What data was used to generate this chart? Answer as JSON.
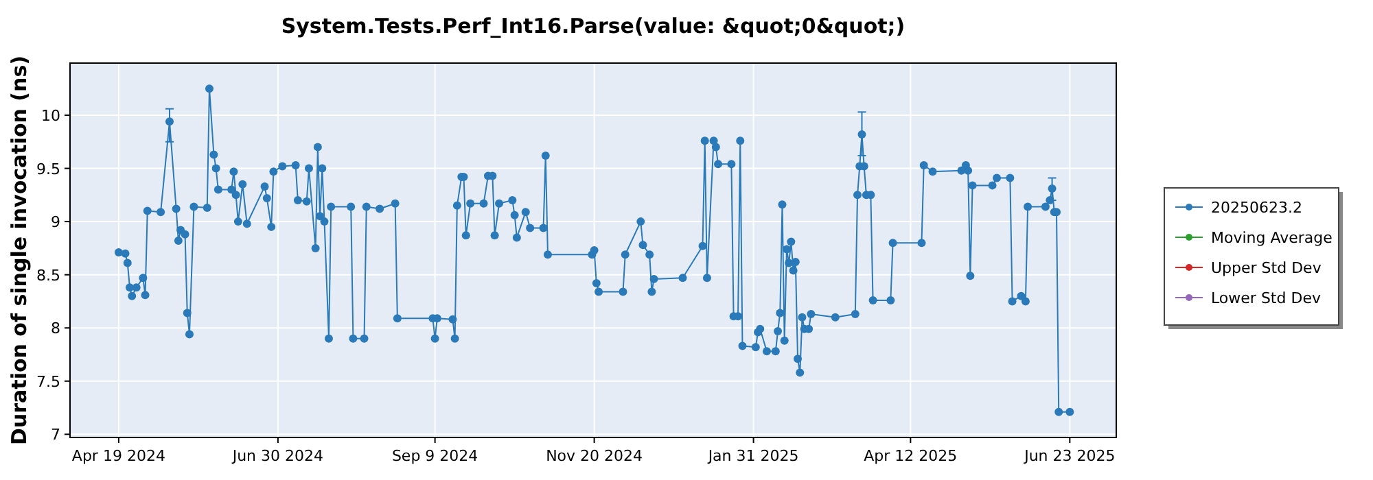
{
  "chart_data": {
    "type": "line",
    "title": "System.Tests.Perf_Int16.Parse(value: &quot;0&quot;)",
    "ylabel": "Duration of single invocation (ns)",
    "xlim": [
      "2024-03-28",
      "2025-07-14"
    ],
    "xticks": [
      {
        "value": "2024-04-19",
        "label": "Apr 19 2024"
      },
      {
        "value": "2024-06-30",
        "label": "Jun 30 2024"
      },
      {
        "value": "2024-09-09",
        "label": "Sep 9 2024"
      },
      {
        "value": "2024-11-20",
        "label": "Nov 20 2024"
      },
      {
        "value": "2025-01-31",
        "label": "Jan 31 2025"
      },
      {
        "value": "2025-04-12",
        "label": "Apr 12 2025"
      },
      {
        "value": "2025-06-23",
        "label": "Jun 23 2025"
      }
    ],
    "ylim": [
      6.97,
      10.49
    ],
    "yticks": [
      7,
      7.5,
      8,
      8.5,
      9,
      9.5,
      10
    ],
    "grid": true,
    "legend": "right",
    "marker": "circle",
    "line_style": "solid",
    "series": [
      {
        "name": "20250623.2",
        "color": "#2a7ab9",
        "x": [
          "2024-04-19",
          "2024-04-22",
          "2024-04-23",
          "2024-04-24",
          "2024-04-25",
          "2024-04-27",
          "2024-04-30",
          "2024-05-01",
          "2024-05-02",
          "2024-05-08",
          "2024-05-12",
          "2024-05-15",
          "2024-05-16",
          "2024-05-17",
          "2024-05-19",
          "2024-05-20",
          "2024-05-21",
          "2024-05-23",
          "2024-05-29",
          "2024-05-30",
          "2024-06-01",
          "2024-06-02",
          "2024-06-03",
          "2024-06-09",
          "2024-06-10",
          "2024-06-11",
          "2024-06-12",
          "2024-06-14",
          "2024-06-16",
          "2024-06-24",
          "2024-06-25",
          "2024-06-27",
          "2024-06-28",
          "2024-07-02",
          "2024-07-08",
          "2024-07-09",
          "2024-07-13",
          "2024-07-14",
          "2024-07-17",
          "2024-07-18",
          "2024-07-19",
          "2024-07-20",
          "2024-07-21",
          "2024-07-23",
          "2024-07-24",
          "2024-08-02",
          "2024-08-03",
          "2024-08-08",
          "2024-08-09",
          "2024-08-15",
          "2024-08-22",
          "2024-08-23",
          "2024-09-08",
          "2024-09-09",
          "2024-09-10",
          "2024-09-17",
          "2024-09-18",
          "2024-09-19",
          "2024-09-21",
          "2024-09-22",
          "2024-09-23",
          "2024-09-25",
          "2024-10-01",
          "2024-10-03",
          "2024-10-05",
          "2024-10-06",
          "2024-10-08",
          "2024-10-14",
          "2024-10-15",
          "2024-10-16",
          "2024-10-20",
          "2024-10-22",
          "2024-10-28",
          "2024-10-29",
          "2024-10-30",
          "2024-11-19",
          "2024-11-20",
          "2024-11-21",
          "2024-11-22",
          "2024-12-03",
          "2024-12-04",
          "2024-12-11",
          "2024-12-12",
          "2024-12-15",
          "2024-12-16",
          "2024-12-17",
          "2024-12-30",
          "2025-01-08",
          "2025-01-09",
          "2025-01-10",
          "2025-01-13",
          "2025-01-14",
          "2025-01-15",
          "2025-01-21",
          "2025-01-22",
          "2025-01-24",
          "2025-01-25",
          "2025-01-26",
          "2025-02-01",
          "2025-02-02",
          "2025-02-03",
          "2025-02-06",
          "2025-02-10",
          "2025-02-11",
          "2025-02-12",
          "2025-02-13",
          "2025-02-14",
          "2025-02-15",
          "2025-02-16",
          "2025-02-17",
          "2025-02-18",
          "2025-02-19",
          "2025-02-20",
          "2025-02-21",
          "2025-02-22",
          "2025-02-23",
          "2025-02-25",
          "2025-02-26",
          "2025-03-09",
          "2025-03-18",
          "2025-03-19",
          "2025-03-20",
          "2025-03-21",
          "2025-03-22",
          "2025-03-23",
          "2025-03-25",
          "2025-03-26",
          "2025-04-03",
          "2025-04-04",
          "2025-04-17",
          "2025-04-18",
          "2025-04-22",
          "2025-05-05",
          "2025-05-07",
          "2025-05-08",
          "2025-05-09",
          "2025-05-10",
          "2025-05-19",
          "2025-05-21",
          "2025-05-27",
          "2025-05-28",
          "2025-06-01",
          "2025-06-03",
          "2025-06-04",
          "2025-06-12",
          "2025-06-14",
          "2025-06-15",
          "2025-06-16",
          "2025-06-17",
          "2025-06-18",
          "2025-06-23"
        ],
        "values": [
          8.71,
          8.7,
          8.61,
          8.38,
          8.3,
          8.38,
          8.47,
          8.31,
          9.1,
          9.09,
          9.94,
          9.12,
          8.82,
          8.92,
          8.88,
          8.14,
          7.94,
          9.14,
          9.13,
          10.25,
          9.63,
          9.5,
          9.3,
          9.3,
          9.47,
          9.25,
          9.0,
          9.35,
          8.98,
          9.33,
          9.22,
          8.95,
          9.47,
          9.52,
          9.53,
          9.2,
          9.19,
          9.5,
          8.75,
          9.7,
          9.05,
          9.5,
          9.0,
          7.9,
          9.14,
          9.14,
          7.9,
          7.9,
          9.14,
          9.12,
          9.17,
          8.09,
          8.09,
          7.9,
          8.09,
          8.08,
          7.9,
          9.15,
          9.42,
          9.42,
          8.87,
          9.17,
          9.17,
          9.43,
          9.43,
          8.87,
          9.17,
          9.2,
          9.06,
          8.85,
          9.09,
          8.94,
          8.94,
          9.62,
          8.69,
          8.69,
          8.73,
          8.42,
          8.34,
          8.34,
          8.69,
          9.0,
          8.78,
          8.69,
          8.34,
          8.46,
          8.47,
          8.77,
          9.76,
          8.47,
          9.76,
          9.7,
          9.54,
          9.54,
          8.11,
          8.11,
          9.76,
          7.83,
          7.82,
          7.96,
          7.99,
          7.78,
          7.78,
          7.97,
          8.14,
          9.16,
          7.88,
          8.74,
          8.61,
          8.81,
          8.54,
          8.62,
          7.71,
          7.58,
          8.1,
          7.99,
          7.99,
          8.13,
          8.1,
          8.13,
          9.25,
          9.52,
          9.82,
          9.52,
          9.25,
          9.25,
          8.26,
          8.26,
          8.8,
          8.8,
          9.53,
          9.47,
          9.48,
          9.53,
          9.48,
          8.49,
          9.34,
          9.34,
          9.41,
          9.41,
          8.25,
          8.3,
          8.25,
          9.14,
          9.14,
          9.2,
          9.31,
          9.09,
          9.09,
          7.21,
          7.21
        ],
        "errors": [
          null,
          null,
          null,
          null,
          null,
          null,
          null,
          null,
          null,
          null,
          [
            9.75,
            10.06
          ],
          null,
          null,
          null,
          null,
          null,
          null,
          null,
          null,
          null,
          null,
          null,
          null,
          null,
          null,
          null,
          null,
          null,
          null,
          null,
          null,
          null,
          null,
          null,
          null,
          null,
          null,
          null,
          null,
          null,
          null,
          null,
          null,
          null,
          null,
          null,
          null,
          null,
          null,
          null,
          null,
          null,
          null,
          null,
          null,
          null,
          null,
          null,
          null,
          null,
          null,
          null,
          null,
          null,
          null,
          null,
          null,
          null,
          null,
          null,
          null,
          null,
          null,
          null,
          null,
          null,
          null,
          null,
          null,
          null,
          null,
          null,
          null,
          null,
          null,
          null,
          null,
          null,
          null,
          null,
          null,
          null,
          null,
          null,
          null,
          null,
          null,
          null,
          null,
          null,
          null,
          null,
          null,
          null,
          null,
          null,
          null,
          null,
          null,
          null,
          null,
          null,
          null,
          null,
          null,
          null,
          null,
          null,
          null,
          null,
          null,
          null,
          [
            9.62,
            10.03
          ],
          null,
          null,
          null,
          null,
          null,
          null,
          null,
          null,
          null,
          null,
          null,
          null,
          null,
          null,
          null,
          null,
          null,
          null,
          null,
          null,
          null,
          null,
          null,
          [
            9.2,
            9.41
          ],
          null,
          null,
          null,
          null
        ]
      },
      {
        "name": "Moving Average",
        "color": "#2ca02c"
      },
      {
        "name": "Upper Std Dev",
        "color": "#d62728"
      },
      {
        "name": "Lower Std Dev",
        "color": "#9467bd"
      }
    ]
  }
}
